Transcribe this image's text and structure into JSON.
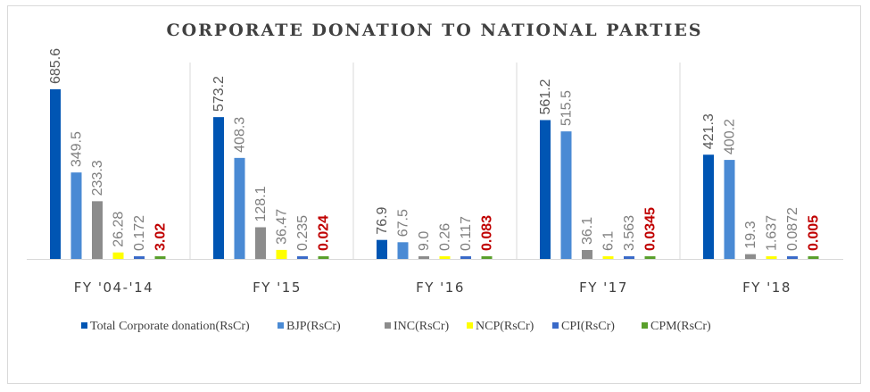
{
  "chart_data": {
    "type": "bar",
    "title": "CORPORATE DONATION TO NATIONAL PARTIES",
    "categories": [
      "FY '04-'14",
      "FY '15",
      "FY '16",
      "FY '17",
      "FY '18"
    ],
    "series": [
      {
        "name": "Total Corporate donation(RsCr)",
        "color": "#0055b3",
        "values": [
          685.6,
          573.2,
          76.9,
          561.2,
          421.3
        ],
        "labels": [
          "685.6",
          "573.2",
          "76.9",
          "561.2",
          "421.3"
        ]
      },
      {
        "name": "BJP(RsCr)",
        "color": "#4a8ad4",
        "values": [
          349.5,
          408.3,
          67.5,
          515.5,
          400.2
        ],
        "labels": [
          "349.5",
          "408.3",
          "67.5",
          "515.5",
          "400.2"
        ]
      },
      {
        "name": "INC(RsCr)",
        "color": "#8c8c8c",
        "values": [
          233.3,
          128.1,
          9.0,
          36.1,
          19.3
        ],
        "labels": [
          "233.3",
          "128.1",
          "9.0",
          "36.1",
          "19.3"
        ]
      },
      {
        "name": "NCP(RsCr)",
        "color": "#ffff00",
        "values": [
          26.28,
          36.47,
          0.26,
          6.1,
          1.637
        ],
        "labels": [
          "26.28",
          "36.47",
          "0.26",
          "6.1",
          "1.637"
        ]
      },
      {
        "name": "CPI(RsCr)",
        "color": "#3a6ac8",
        "values": [
          0.172,
          0.235,
          0.117,
          3.563,
          0.0872
        ],
        "labels": [
          "0.172",
          "0.235",
          "0.117",
          "3.563",
          "0.0872"
        ]
      },
      {
        "name": "CPM(RsCr)",
        "color": "#5aa02c",
        "values": [
          3.02,
          0.024,
          0.083,
          0.0345,
          0.005
        ],
        "labels": [
          "3.02",
          "0.024",
          "0.083",
          "0.0345",
          "0.005"
        ],
        "label_color": "#c00000"
      }
    ],
    "xlabel": "",
    "ylabel": "",
    "ylim": [
      0,
      700
    ],
    "grid": false,
    "legend": "bottom"
  }
}
